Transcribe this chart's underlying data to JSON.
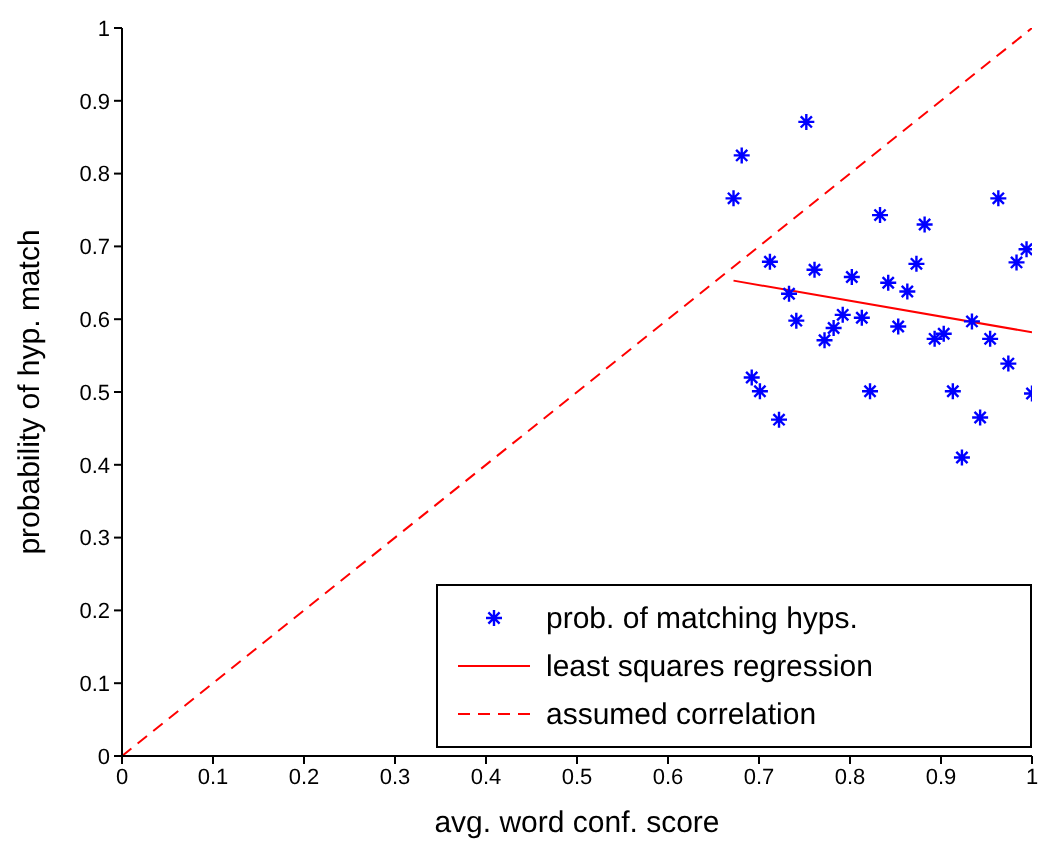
{
  "chart_data": {
    "type": "scatter",
    "xlabel": "avg. word conf. score",
    "ylabel": "probability of hyp. match",
    "xlim": [
      0,
      1
    ],
    "ylim": [
      0,
      1
    ],
    "xticks": [
      0,
      0.1,
      0.2,
      0.3,
      0.4,
      0.5,
      0.6,
      0.7,
      0.8,
      0.9,
      1
    ],
    "yticks": [
      0,
      0.1,
      0.2,
      0.3,
      0.4,
      0.5,
      0.6,
      0.7,
      0.8,
      0.9,
      1
    ],
    "grid": false,
    "legend": "bottom right",
    "series": [
      {
        "name": "prob. of matching hyps.",
        "type": "scatter",
        "marker": "cross",
        "color": "#0000ff",
        "x": [
          0.672,
          0.681,
          0.752,
          0.712,
          0.692,
          0.701,
          0.722,
          0.733,
          0.741,
          0.761,
          0.772,
          0.782,
          0.792,
          0.802,
          0.813,
          0.822,
          0.833,
          0.842,
          0.853,
          0.863,
          0.873,
          0.882,
          0.893,
          0.903,
          0.913,
          0.923,
          0.934,
          0.943,
          0.954,
          0.963,
          0.974,
          0.983,
          0.994,
          1.0
        ],
        "values": [
          0.766,
          0.825,
          0.871,
          0.679,
          0.52,
          0.501,
          0.462,
          0.635,
          0.598,
          0.668,
          0.571,
          0.588,
          0.606,
          0.658,
          0.602,
          0.501,
          0.743,
          0.65,
          0.59,
          0.638,
          0.676,
          0.73,
          0.573,
          0.58,
          0.501,
          0.41,
          0.597,
          0.465,
          0.573,
          0.766,
          0.539,
          0.678,
          0.696,
          0.498
        ]
      },
      {
        "name": "least squares regression",
        "type": "line",
        "line_style": "solid",
        "color": "#ff0000",
        "x": [
          0.672,
          1.0
        ],
        "values": [
          0.653,
          0.582
        ]
      },
      {
        "name": "assumed correlation",
        "type": "line",
        "line_style": "dashed",
        "color": "#ff0000",
        "x": [
          0,
          1
        ],
        "values": [
          0,
          1
        ]
      }
    ]
  }
}
